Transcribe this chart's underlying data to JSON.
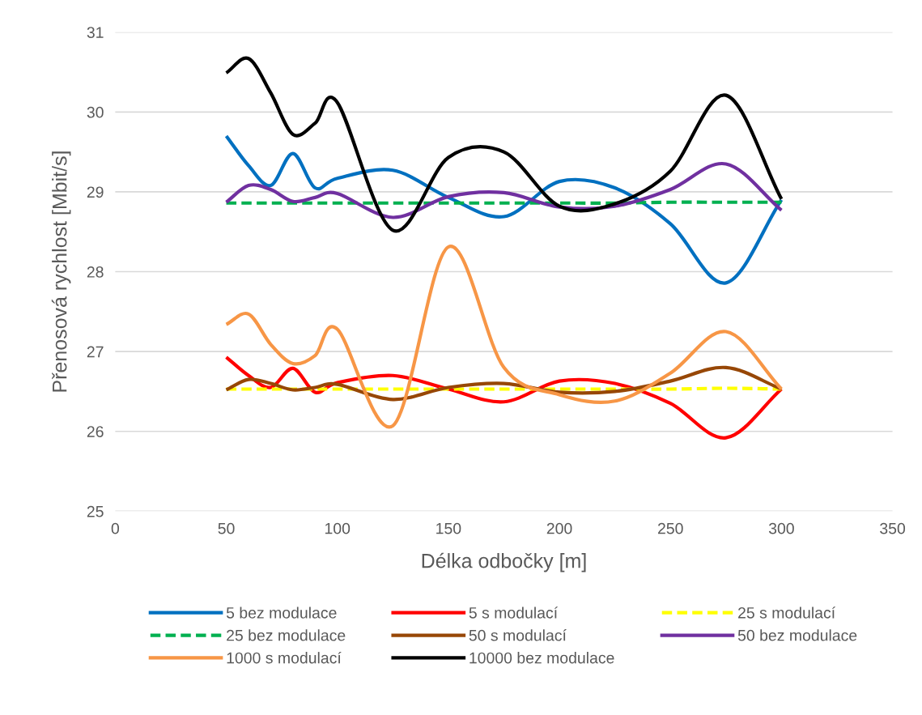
{
  "chart_data": {
    "type": "line",
    "xlabel": "Délka odbočky [m]",
    "ylabel": "Přenosová rychlost [Mbit/s]",
    "x": [
      50,
      60,
      70,
      80,
      90,
      100,
      125,
      150,
      175,
      200,
      225,
      250,
      275,
      300
    ],
    "xlim": [
      0,
      350
    ],
    "xticks": [
      0,
      50,
      100,
      150,
      200,
      250,
      300,
      350
    ],
    "ylim": [
      25,
      31
    ],
    "yticks": [
      25,
      26,
      27,
      28,
      29,
      30,
      31
    ],
    "grid": "y",
    "legend": "bottom",
    "marker": "none",
    "series": [
      {
        "name": "5 bez modulace",
        "color": "#0070c0",
        "values": [
          29.7,
          29.33,
          29.08,
          29.48,
          29.05,
          29.17,
          29.27,
          28.93,
          28.69,
          29.13,
          29.05,
          28.6,
          27.86,
          28.9
        ]
      },
      {
        "name": "5 s modulací",
        "color": "#ff0000",
        "values": [
          26.93,
          26.7,
          26.55,
          26.79,
          26.49,
          26.61,
          26.7,
          26.53,
          26.37,
          26.63,
          26.6,
          26.35,
          25.92,
          26.53
        ]
      },
      {
        "name": "25 s modulací",
        "color": "#ffff00",
        "line_style": "dashed",
        "values": [
          26.53,
          26.53,
          26.53,
          26.53,
          26.53,
          26.53,
          26.53,
          26.53,
          26.53,
          26.53,
          26.53,
          26.53,
          26.54,
          26.53
        ]
      },
      {
        "name": "25 bez modulace",
        "color": "#00b050",
        "line_style": "dashed",
        "values": [
          28.86,
          28.86,
          28.86,
          28.86,
          28.86,
          28.86,
          28.86,
          28.86,
          28.86,
          28.86,
          28.86,
          28.87,
          28.87,
          28.87
        ]
      },
      {
        "name": "50 s modulací",
        "color": "#974706",
        "values": [
          26.52,
          26.65,
          26.6,
          26.52,
          26.55,
          26.59,
          26.4,
          26.55,
          26.6,
          26.49,
          26.5,
          26.63,
          26.8,
          26.53
        ]
      },
      {
        "name": "50 bez modulace",
        "color": "#7030a0",
        "values": [
          28.87,
          29.08,
          29.03,
          28.88,
          28.93,
          28.98,
          28.68,
          28.94,
          28.99,
          28.81,
          28.82,
          29.03,
          29.35,
          28.77
        ]
      },
      {
        "name": "1000 s modulací",
        "color": "#f79646",
        "values": [
          27.34,
          27.47,
          27.09,
          26.85,
          26.95,
          27.28,
          26.07,
          28.31,
          26.8,
          26.46,
          26.38,
          26.73,
          27.25,
          26.53
        ]
      },
      {
        "name": "10000 bez modulace",
        "color": "#000000",
        "values": [
          30.49,
          30.67,
          30.24,
          29.72,
          29.86,
          30.12,
          28.52,
          29.43,
          29.5,
          28.82,
          28.85,
          29.26,
          30.21,
          28.91
        ]
      }
    ]
  }
}
